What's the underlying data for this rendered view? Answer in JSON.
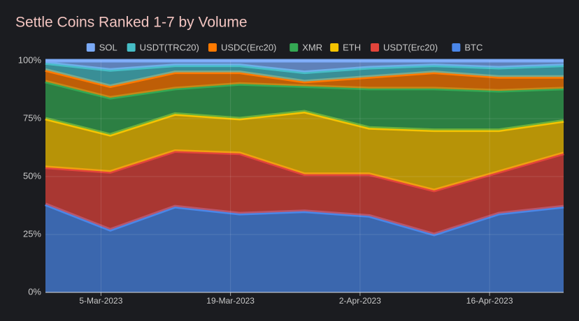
{
  "chart_data": {
    "type": "stacked-area-percent",
    "title": "Settle Coins Ranked 1-7 by Volume",
    "x": [
      "2023-02-27",
      "2023-03-06",
      "2023-03-13",
      "2023-03-20",
      "2023-03-27",
      "2023-04-03",
      "2023-04-10",
      "2023-04-17",
      "2023-04-24"
    ],
    "xlim": [
      "2023-02-27",
      "2023-04-24"
    ],
    "xticks": [
      {
        "value": "2023-03-05",
        "label": "5-Mar-2023"
      },
      {
        "value": "2023-03-19",
        "label": "19-Mar-2023"
      },
      {
        "value": "2023-04-02",
        "label": "2-Apr-2023"
      },
      {
        "value": "2023-04-16",
        "label": "16-Apr-2023"
      }
    ],
    "ylim": [
      0,
      100
    ],
    "yticks": [
      {
        "value": 0,
        "label": "0%"
      },
      {
        "value": 25,
        "label": "25%"
      },
      {
        "value": 50,
        "label": "50%"
      },
      {
        "value": 75,
        "label": "75%"
      },
      {
        "value": 100,
        "label": "100%"
      }
    ],
    "grid": true,
    "legend": "top",
    "series": [
      {
        "name": "BTC",
        "color": "#4a86e8",
        "values": [
          38,
          27,
          37,
          34,
          35,
          33,
          25,
          34,
          37
        ]
      },
      {
        "name": "USDT(Erc20)",
        "color": "#e2443b",
        "values": [
          16,
          25,
          24,
          26,
          16,
          18,
          19,
          18,
          23
        ]
      },
      {
        "name": "ETH",
        "color": "#f5c400",
        "values": [
          21,
          16,
          16,
          15,
          27,
          20,
          26,
          18,
          14
        ]
      },
      {
        "name": "XMR",
        "color": "#34a853",
        "values": [
          16,
          16,
          11,
          15,
          11,
          17,
          18,
          17,
          14
        ]
      },
      {
        "name": "USDC(Erc20)",
        "color": "#ff7a00",
        "values": [
          5,
          5,
          7,
          5,
          2,
          5,
          7,
          6,
          5
        ]
      },
      {
        "name": "USDT(TRC20)",
        "color": "#46bdc6",
        "values": [
          3,
          7,
          3,
          3,
          4,
          4,
          3,
          4,
          5
        ]
      },
      {
        "name": "SOL",
        "color": "#7baaf7",
        "values": [
          1,
          4,
          2,
          2,
          5,
          3,
          2,
          3,
          2
        ]
      }
    ]
  }
}
